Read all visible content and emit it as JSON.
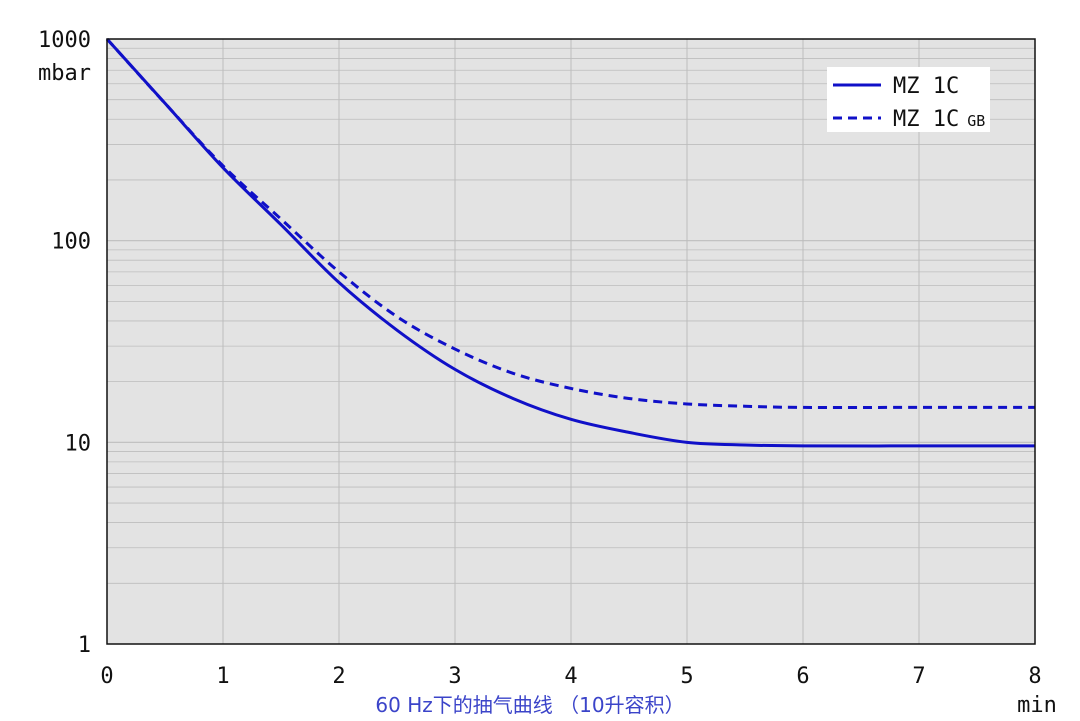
{
  "colors": {
    "plot_bg": "#e3e3e3",
    "grid": "#bdbdbd",
    "frame": "#111111",
    "series": "#1010c8",
    "caption": "#3b44c9"
  },
  "caption": "60 Hz下的抽气曲线 （10升容积）",
  "chart_data": {
    "type": "line",
    "x_unit": "min",
    "y_unit": "mbar",
    "xlim": [
      0,
      8
    ],
    "ylim": [
      1,
      1000
    ],
    "y_scale": "log",
    "grid": true,
    "legend_position": "top-right",
    "x_ticks": [
      "0",
      "1",
      "2",
      "3",
      "4",
      "5",
      "6",
      "7",
      "8"
    ],
    "y_ticks": [
      "1",
      "10",
      "100",
      "1000"
    ],
    "series": [
      {
        "name": "MZ 1C",
        "style": "solid",
        "x": [
          0,
          0.5,
          1,
          1.5,
          2,
          2.5,
          3,
          3.5,
          4,
          4.5,
          5,
          5.5,
          6,
          7,
          8
        ],
        "y": [
          1000,
          480,
          230,
          120,
          62,
          36,
          23,
          16.5,
          13,
          11.2,
          10,
          9.7,
          9.6,
          9.6,
          9.6
        ]
      },
      {
        "name": "MZ 1C",
        "name_suffix": "GB",
        "style": "dashed",
        "x": [
          0,
          0.5,
          1,
          1.5,
          2,
          2.5,
          3,
          3.5,
          4,
          4.5,
          5,
          5.5,
          6,
          7,
          8
        ],
        "y": [
          1000,
          480,
          235,
          128,
          70,
          42,
          29,
          22,
          18.5,
          16.5,
          15.5,
          15.1,
          14.9,
          14.9,
          14.9
        ]
      }
    ]
  }
}
